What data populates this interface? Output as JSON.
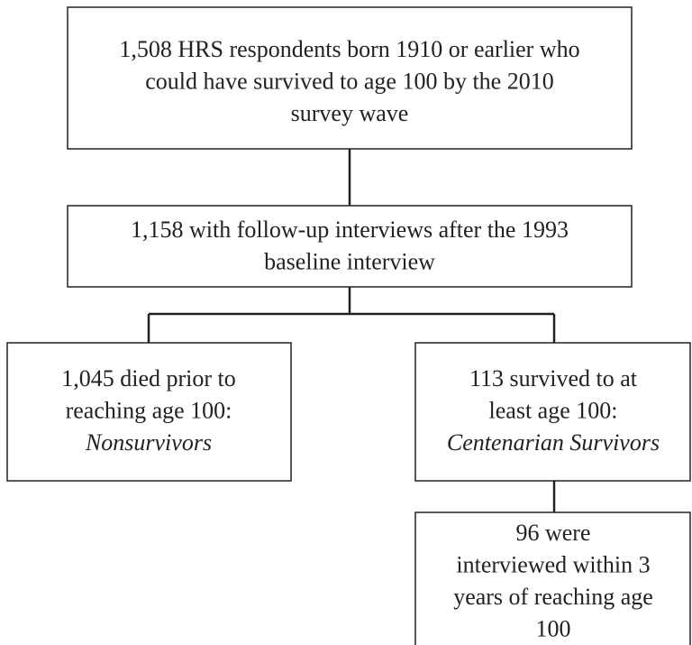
{
  "nodes": [
    {
      "lines": [
        "1,508 HRS respondents born 1910 or earlier who",
        "could have survived to age 100 by the 2010",
        "survey wave"
      ]
    },
    {
      "lines": [
        "1,158 with follow-up interviews after the 1993",
        "baseline interview"
      ]
    },
    {
      "lines": [
        "1,045 died prior to",
        "reaching age 100:"
      ],
      "group": "Nonsurvivors"
    },
    {
      "lines": [
        "113 survived to at",
        "least age 100:"
      ],
      "group": "Centenarian Survivors"
    },
    {
      "lines": [
        "96 were",
        "interviewed within 3",
        "years of reaching age",
        "100"
      ]
    }
  ]
}
